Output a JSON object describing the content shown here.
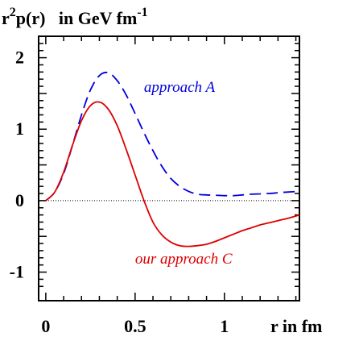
{
  "chart_data": {
    "type": "line",
    "title": "",
    "ylabel": {
      "base": "r",
      "sup1": "2",
      "middle": "p(r)   in GeV fm",
      "sup2": "-1"
    },
    "xlabel": "r in fm",
    "xlim": [
      -0.04,
      1.42
    ],
    "ylim": [
      -1.4,
      2.3
    ],
    "x_ticks": [
      {
        "value": 0,
        "label": "0"
      },
      {
        "value": 0.5,
        "label": "0.5"
      },
      {
        "value": 1,
        "label": "1"
      }
    ],
    "y_ticks": [
      {
        "value": -1,
        "label": "-1"
      },
      {
        "value": 0,
        "label": "0"
      },
      {
        "value": 1,
        "label": "1"
      },
      {
        "value": 2,
        "label": "2"
      }
    ],
    "grid": false,
    "zero_line": "dotted",
    "series": [
      {
        "name": "approach A",
        "color": "#0000dd",
        "style": "dashed",
        "x": [
          0,
          0.05,
          0.1,
          0.15,
          0.2,
          0.25,
          0.3,
          0.35,
          0.4,
          0.45,
          0.5,
          0.55,
          0.6,
          0.65,
          0.7,
          0.75,
          0.8,
          0.85,
          0.9,
          0.95,
          1.0,
          1.05,
          1.1,
          1.15,
          1.2,
          1.25,
          1.3,
          1.35,
          1.42
        ],
        "y": [
          0,
          0.12,
          0.38,
          0.78,
          1.2,
          1.55,
          1.75,
          1.79,
          1.68,
          1.48,
          1.22,
          0.95,
          0.7,
          0.48,
          0.31,
          0.2,
          0.13,
          0.09,
          0.08,
          0.075,
          0.07,
          0.07,
          0.08,
          0.09,
          0.095,
          0.1,
          0.11,
          0.12,
          0.13
        ]
      },
      {
        "name": "our approach C",
        "color": "#dd0000",
        "style": "solid",
        "x": [
          0,
          0.05,
          0.1,
          0.15,
          0.2,
          0.25,
          0.3,
          0.35,
          0.4,
          0.45,
          0.5,
          0.55,
          0.6,
          0.65,
          0.7,
          0.75,
          0.8,
          0.85,
          0.9,
          0.95,
          1.0,
          1.05,
          1.1,
          1.15,
          1.2,
          1.25,
          1.3,
          1.35,
          1.42
        ],
        "y": [
          0,
          0.12,
          0.4,
          0.78,
          1.12,
          1.33,
          1.38,
          1.28,
          1.05,
          0.72,
          0.36,
          0.0,
          -0.3,
          -0.48,
          -0.58,
          -0.63,
          -0.64,
          -0.63,
          -0.61,
          -0.57,
          -0.52,
          -0.47,
          -0.42,
          -0.38,
          -0.34,
          -0.31,
          -0.28,
          -0.25,
          -0.2
        ]
      }
    ],
    "annotations": [
      {
        "text": "approach A",
        "color": "#0000dd",
        "x": 0.55,
        "y": 1.52
      },
      {
        "text": "our approach C",
        "color": "#dd0000",
        "x": 0.5,
        "y": -0.88
      }
    ]
  }
}
